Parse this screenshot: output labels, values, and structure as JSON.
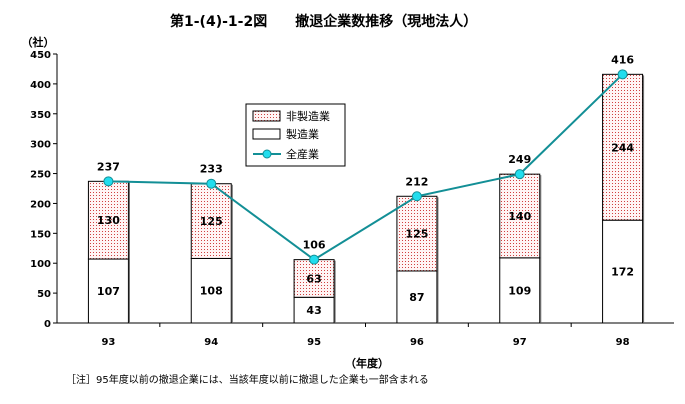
{
  "chart_data": {
    "type": "bar",
    "title": "第1-(4)-1-2図　　撤退企業数推移（現地法人）",
    "ylabel": "（社）",
    "xlabel": "（年度）",
    "note": "［注］95年度以前の撤退企業には、当該年度以前に撤退した企業も一部含まれる",
    "categories": [
      "93",
      "94",
      "95",
      "96",
      "97",
      "98"
    ],
    "ylim": [
      0,
      450
    ],
    "yticks": [
      "0",
      "50",
      "100",
      "150",
      "200",
      "250",
      "300",
      "350",
      "400",
      "450"
    ],
    "series": [
      {
        "name": "製造業",
        "kind": "stacked-bar",
        "color": "#ffffff",
        "values": [
          107,
          108,
          43,
          87,
          109,
          172
        ]
      },
      {
        "name": "非製造業",
        "kind": "stacked-bar",
        "color": "#f4c8c8",
        "values": [
          130,
          125,
          63,
          125,
          140,
          244
        ]
      },
      {
        "name": "全産業",
        "kind": "line",
        "color": "#138f96",
        "marker_color": "#22ddee",
        "values": [
          237,
          233,
          106,
          212,
          249,
          416
        ]
      }
    ],
    "legend_position": "inside-center",
    "grid": false
  }
}
